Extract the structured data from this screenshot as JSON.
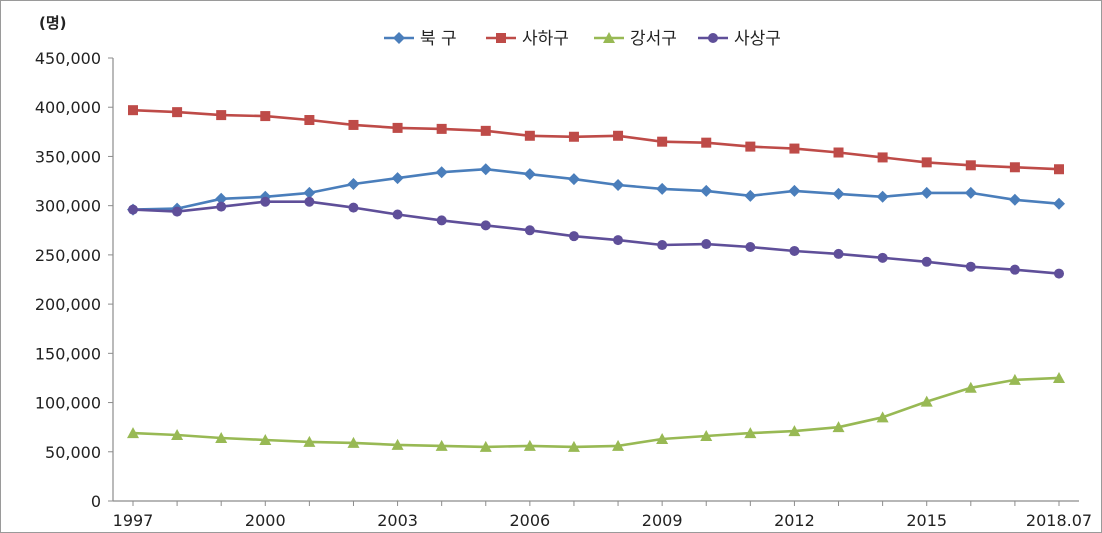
{
  "chart_data": {
    "type": "line",
    "unit_label": "(명)",
    "x": [
      "1997",
      "1998",
      "1999",
      "2000",
      "2001",
      "2002",
      "2003",
      "2004",
      "2005",
      "2006",
      "2007",
      "2008",
      "2009",
      "2010",
      "2011",
      "2012",
      "2013",
      "2014",
      "2015",
      "2016",
      "2017",
      "2018.07"
    ],
    "x_tick_labels": [
      "1997",
      "2000",
      "2003",
      "2006",
      "2009",
      "2012",
      "2015",
      "2018.07"
    ],
    "y_tick_labels": [
      "0",
      "50,000",
      "100,000",
      "150,000",
      "200,000",
      "250,000",
      "300,000",
      "350,000",
      "400,000",
      "450,000"
    ],
    "ylim": [
      0,
      450000
    ],
    "grid": false,
    "legend_position": "top",
    "series": [
      {
        "name": "북 구",
        "color": "#4a7ebb",
        "marker": "diamond",
        "values": [
          296000,
          297000,
          307000,
          309000,
          313000,
          322000,
          328000,
          334000,
          337000,
          332000,
          327000,
          321000,
          317000,
          315000,
          310000,
          315000,
          312000,
          309000,
          313000,
          313000,
          306000,
          302000
        ]
      },
      {
        "name": "사하구",
        "color": "#be4b48",
        "marker": "square",
        "values": [
          397000,
          395000,
          392000,
          391000,
          387000,
          382000,
          379000,
          378000,
          376000,
          371000,
          370000,
          371000,
          365000,
          364000,
          360000,
          358000,
          354000,
          349000,
          344000,
          341000,
          339000,
          337000
        ]
      },
      {
        "name": "강서구",
        "color": "#98b954",
        "marker": "triangle",
        "values": [
          69000,
          67000,
          64000,
          62000,
          60000,
          59000,
          57000,
          56000,
          55000,
          56000,
          55000,
          56000,
          63000,
          66000,
          69000,
          71000,
          75000,
          85000,
          101000,
          115000,
          123000,
          125000
        ]
      },
      {
        "name": "사상구",
        "color": "#5f4f99",
        "marker": "circle",
        "values": [
          296000,
          294000,
          299000,
          304000,
          304000,
          298000,
          291000,
          285000,
          280000,
          275000,
          269000,
          265000,
          260000,
          261000,
          258000,
          254000,
          251000,
          247000,
          243000,
          238000,
          235000,
          231000
        ]
      }
    ]
  }
}
